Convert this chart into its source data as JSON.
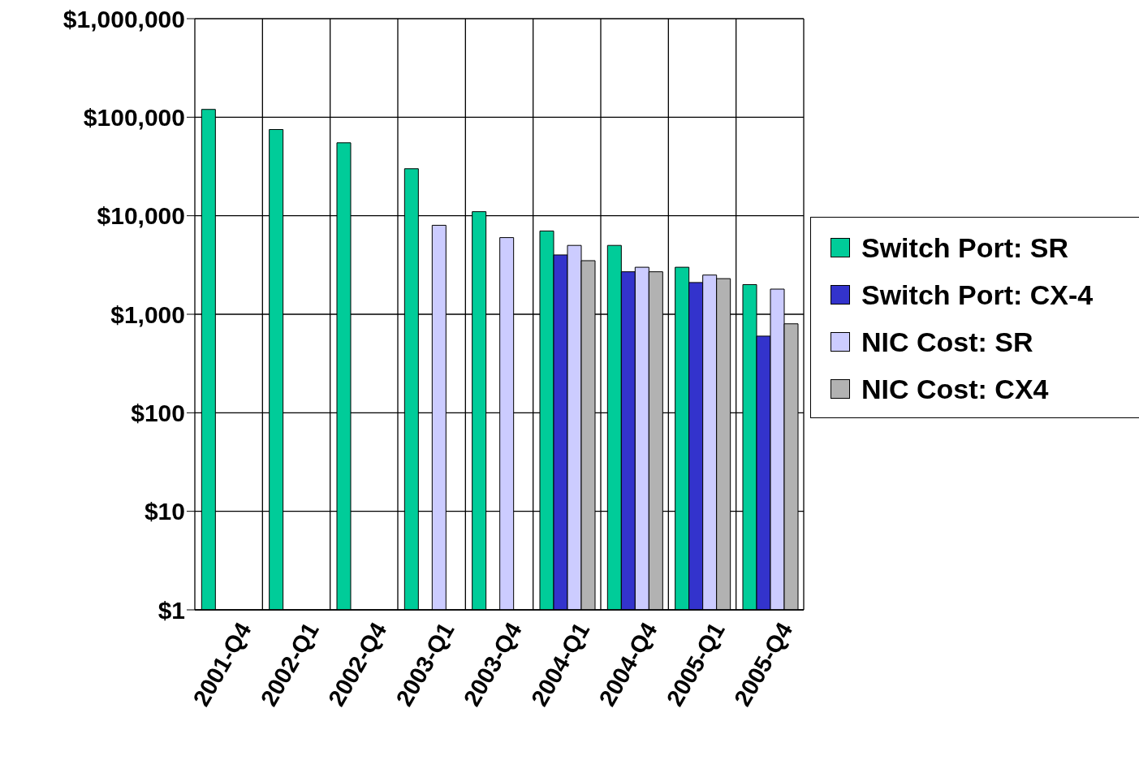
{
  "chart_data": {
    "type": "bar",
    "log": "y",
    "grid": true,
    "legend": "right",
    "categories": [
      "2001-Q4",
      "2002-Q1",
      "2002-Q4",
      "2003-Q1",
      "2003-Q4",
      "2004-Q1",
      "2004-Q4",
      "2005-Q1",
      "2005-Q4"
    ],
    "series": [
      {
        "name": "Switch Port: SR",
        "color": "#00cc99",
        "values": [
          120000,
          75000,
          55000,
          30000,
          11000,
          7000,
          5000,
          3000,
          2000
        ]
      },
      {
        "name": "Switch Port: CX-4",
        "color": "#3333cc",
        "values": [
          null,
          null,
          null,
          null,
          null,
          4000,
          2700,
          2100,
          600
        ]
      },
      {
        "name": "NIC Cost: SR",
        "color": "#ccccff",
        "values": [
          null,
          null,
          null,
          8000,
          6000,
          5000,
          3000,
          2500,
          1800
        ]
      },
      {
        "name": "NIC Cost: CX4",
        "color": "#b2b2b2",
        "values": [
          null,
          null,
          null,
          null,
          null,
          3500,
          2700,
          2300,
          800
        ]
      }
    ],
    "ylim": [
      1,
      1000000
    ],
    "yticks": [
      {
        "value": 1,
        "label": "$1"
      },
      {
        "value": 10,
        "label": "$10"
      },
      {
        "value": 100,
        "label": "$100"
      },
      {
        "value": 1000,
        "label": "$1,000"
      },
      {
        "value": 10000,
        "label": "$10,000"
      },
      {
        "value": 100000,
        "label": "$100,000"
      },
      {
        "value": 1000000,
        "label": "$1,000,000"
      }
    ]
  }
}
